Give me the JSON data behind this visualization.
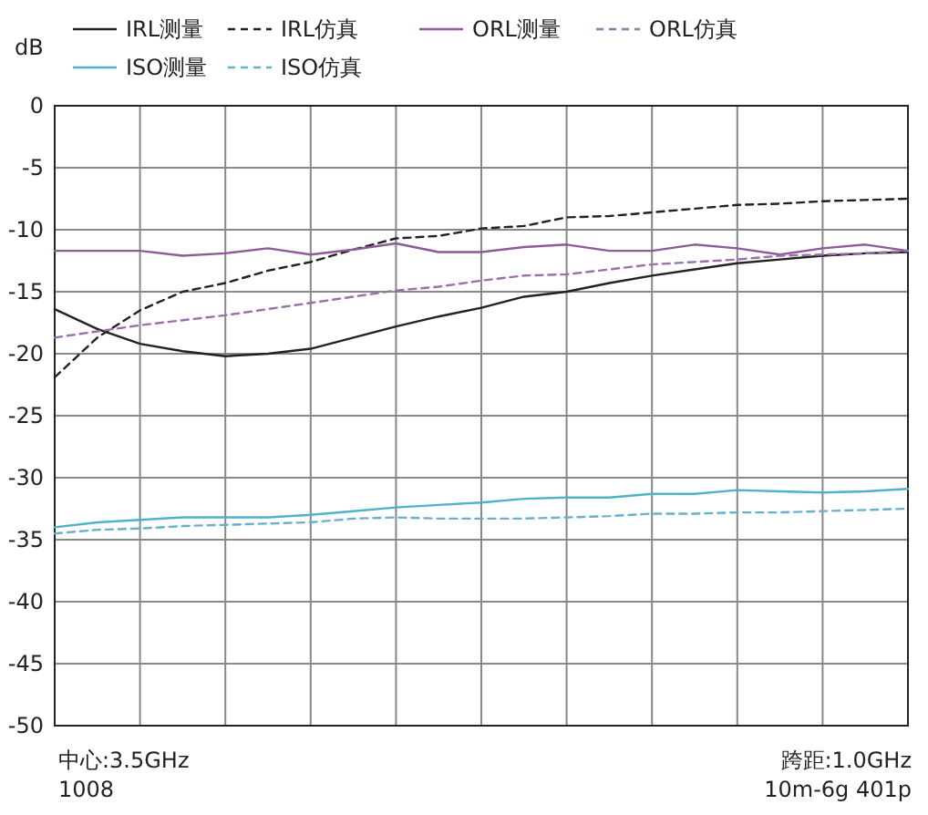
{
  "chart_data": {
    "type": "line",
    "ylabel": "dB",
    "categories": [
      null,
      null,
      null,
      null,
      null,
      null,
      null,
      null,
      null,
      null,
      null,
      null,
      null,
      null,
      null,
      null,
      null,
      null,
      null,
      null,
      null
    ],
    "ylim": [
      -50,
      0
    ],
    "yticks": [
      0,
      -5,
      -10,
      -15,
      -20,
      -25,
      -30,
      -35,
      -40,
      -45,
      -50
    ],
    "grid": true,
    "legend": "top",
    "marker": "none",
    "series": [
      {
        "name": "IRL测量",
        "color": "#222222",
        "line_style": "solid",
        "values": [
          -16.4,
          -18.0,
          -19.2,
          -19.8,
          -20.2,
          -20.0,
          -19.6,
          -18.7,
          -17.8,
          -17.0,
          -16.3,
          -15.4,
          -15.0,
          -14.3,
          -13.7,
          -13.2,
          -12.7,
          -12.4,
          -12.1,
          -11.9,
          -11.8
        ]
      },
      {
        "name": "IRL仿真",
        "color": "#222222",
        "line_style": "dashed",
        "values": [
          -21.9,
          -18.7,
          -16.5,
          -15.0,
          -14.3,
          -13.3,
          -12.6,
          -11.6,
          -10.7,
          -10.5,
          -9.9,
          -9.7,
          -9.0,
          -8.9,
          -8.6,
          -8.3,
          -8.0,
          -7.9,
          -7.7,
          -7.6,
          -7.5
        ]
      },
      {
        "name": "ORL测量",
        "color": "#8e5a9a",
        "line_style": "solid",
        "values": [
          -11.7,
          -11.7,
          -11.7,
          -12.1,
          -11.9,
          -11.5,
          -12.0,
          -11.6,
          -11.1,
          -11.8,
          -11.8,
          -11.4,
          -11.2,
          -11.7,
          -11.7,
          -11.2,
          -11.5,
          -12.0,
          -11.5,
          -11.2,
          -11.7
        ]
      },
      {
        "name": "ORL仿真",
        "color": "#9a70aa",
        "line_style": "dashed",
        "values": [
          -18.7,
          -18.2,
          -17.7,
          -17.3,
          -16.9,
          -16.4,
          -15.9,
          -15.4,
          -14.9,
          -14.6,
          -14.1,
          -13.7,
          -13.6,
          -13.2,
          -12.8,
          -12.6,
          -12.4,
          -12.1,
          -12.0,
          -11.9,
          -11.7
        ]
      },
      {
        "name": "ISO测量",
        "color": "#4fb3c8",
        "line_style": "solid",
        "values": [
          -34.0,
          -33.6,
          -33.4,
          -33.2,
          -33.2,
          -33.2,
          -33.0,
          -32.7,
          -32.4,
          -32.2,
          -32.0,
          -31.7,
          -31.6,
          -31.6,
          -31.3,
          -31.3,
          -31.0,
          -31.1,
          -31.2,
          -31.1,
          -30.9
        ]
      },
      {
        "name": "ISO仿真",
        "color": "#6aaed0",
        "line_style": "dashed",
        "values": [
          -34.5,
          -34.2,
          -34.1,
          -33.9,
          -33.8,
          -33.7,
          -33.6,
          -33.3,
          -33.2,
          -33.3,
          -33.3,
          -33.3,
          -33.2,
          -33.1,
          -32.9,
          -32.9,
          -32.8,
          -32.8,
          -32.7,
          -32.6,
          -32.5
        ]
      }
    ],
    "annotations": [
      "中心:3.5GHz",
      "1008",
      "跨距:1.0GHz",
      "10m-6g 401p"
    ]
  }
}
